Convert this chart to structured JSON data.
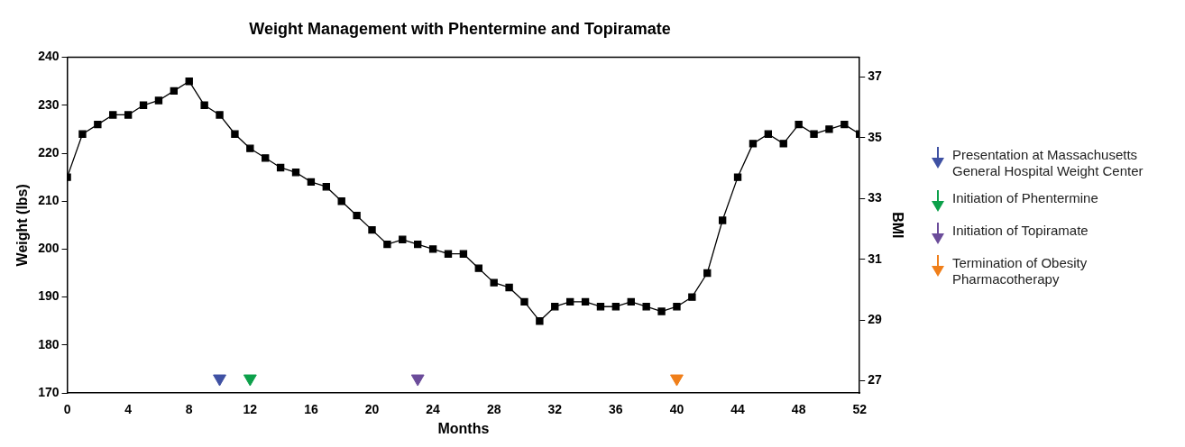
{
  "chart_data": {
    "type": "line",
    "title": "Weight Management with Phentermine and Topiramate",
    "xlabel": "Months",
    "ylabel": "Weight (lbs)",
    "y2label": "BMI",
    "x": [
      0,
      1,
      2,
      3,
      4,
      5,
      6,
      7,
      8,
      9,
      10,
      11,
      12,
      13,
      14,
      15,
      16,
      17,
      18,
      19,
      20,
      21,
      22,
      23,
      24,
      25,
      26,
      27,
      28,
      29,
      30,
      31,
      32,
      33,
      34,
      35,
      36,
      37,
      38,
      39,
      40,
      41,
      42,
      43,
      44,
      45,
      46,
      47,
      48,
      49,
      50,
      51,
      52
    ],
    "series": [
      {
        "color": "#000000",
        "values": [
          215,
          224,
          226,
          228,
          228,
          230,
          231,
          233,
          235,
          230,
          228,
          224,
          221,
          219,
          217,
          216,
          214,
          213,
          210,
          207,
          204,
          201,
          202,
          201,
          200,
          199,
          199,
          196,
          193,
          192,
          189,
          185,
          188,
          189,
          189,
          188,
          188,
          189,
          188,
          187,
          188,
          190,
          195,
          206,
          215,
          222,
          224,
          222,
          226,
          224,
          225,
          226,
          224
        ]
      },
      {
        "type": "scatter",
        "marker": "triangle",
        "name": "Presentation at Massachusetts General Hospital Weight Center",
        "color": "#3f51a3",
        "x": [
          10
        ],
        "values": [
          173
        ]
      },
      {
        "type": "scatter",
        "marker": "triangle",
        "name": "Initiation of Phentermine",
        "color": "#0ca04a",
        "x": [
          12
        ],
        "values": [
          173
        ]
      },
      {
        "type": "scatter",
        "marker": "triangle",
        "name": "Initiation of Topiramate",
        "color": "#6b4c9a",
        "x": [
          23
        ],
        "values": [
          173
        ]
      },
      {
        "type": "scatter",
        "marker": "triangle",
        "name": "Termination of Obesity Pharmacotherapy",
        "color": "#f07f1a",
        "x": [
          40
        ],
        "values": [
          173
        ]
      }
    ],
    "xlim": [
      0,
      52
    ],
    "xticks": [
      0,
      4,
      8,
      12,
      16,
      20,
      24,
      28,
      32,
      36,
      40,
      44,
      48,
      52
    ],
    "ylim": [
      170,
      240
    ],
    "yticks": [
      170,
      180,
      190,
      200,
      210,
      220,
      230,
      240
    ],
    "y2lim": [
      26.6,
      37.65
    ],
    "y2ticks": [
      27,
      29,
      31,
      33,
      35,
      37
    ],
    "grid": false,
    "legend": "right",
    "marker": "square",
    "line_style": "solid"
  }
}
